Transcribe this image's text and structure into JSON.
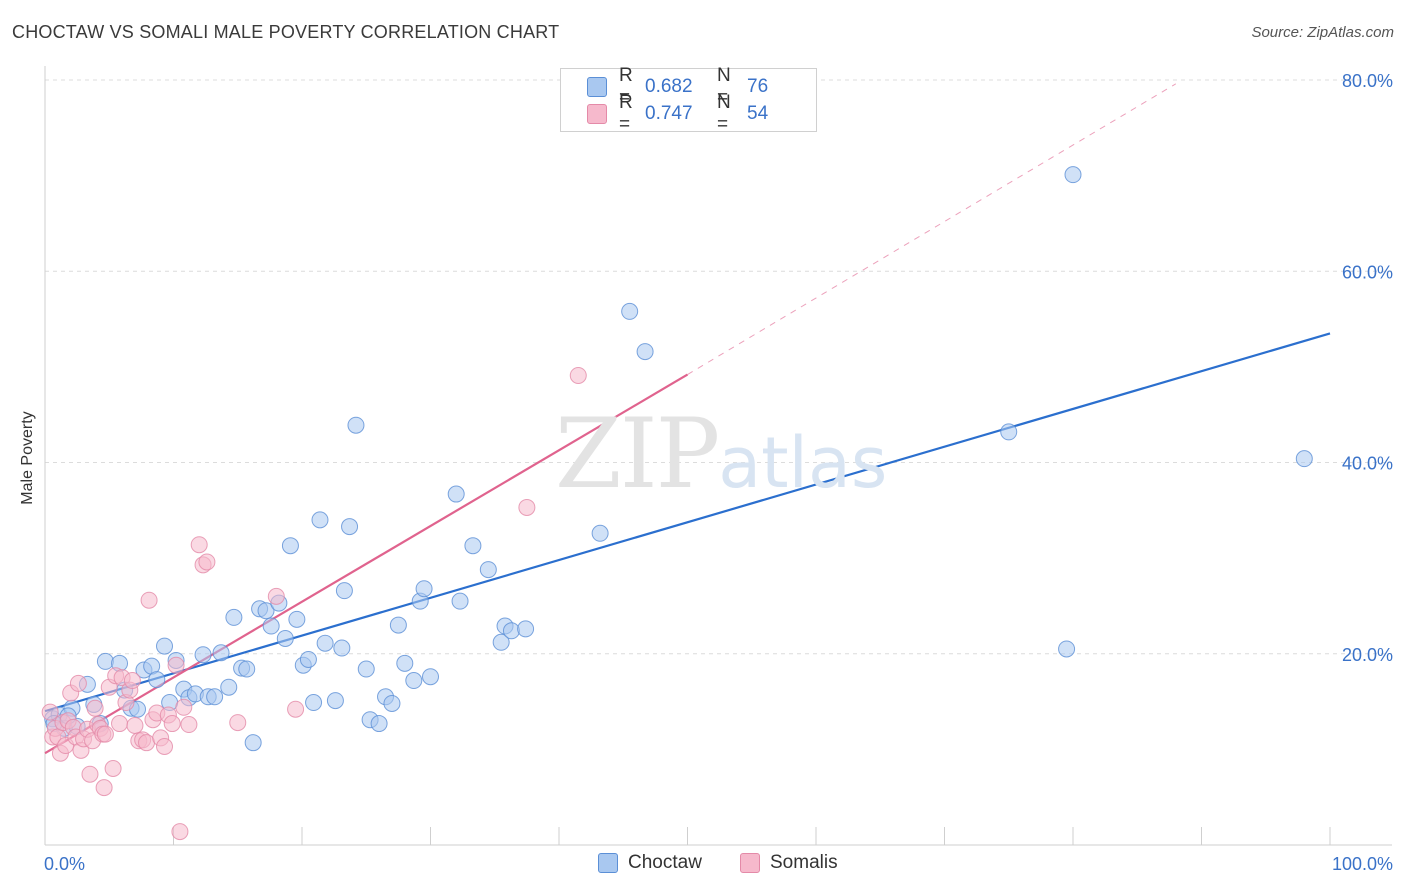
{
  "title": "CHOCTAW VS SOMALI MALE POVERTY CORRELATION CHART",
  "source": "Source: ZipAtlas.com",
  "watermark": {
    "zip": "ZIP",
    "atlas": "atlas"
  },
  "colors": {
    "choctaw_fill": "#a9c8f0",
    "choctaw_stroke": "#5b8fd6",
    "choctaw_line": "#2b6fce",
    "somali_fill": "#f6b9cc",
    "somali_stroke": "#e48aa8",
    "somali_line": "#e0638e",
    "axis_label": "#3a72c8"
  },
  "legend": [
    {
      "r_label": "R = ",
      "r_value": "0.682",
      "n_label": "N = ",
      "n_value": "76"
    },
    {
      "r_label": "R = ",
      "r_value": "0.747",
      "n_label": "N = ",
      "n_value": "54"
    }
  ],
  "bottom_legend": [
    "Choctaw",
    "Somalis"
  ],
  "chart_data": {
    "type": "scatter",
    "title": "CHOCTAW VS SOMALI MALE POVERTY CORRELATION CHART",
    "xlabel": "",
    "ylabel": "Male Poverty",
    "xlim": [
      0,
      100
    ],
    "ylim": [
      0,
      80
    ],
    "x_tick_labels": [
      "0.0%",
      "100.0%"
    ],
    "y_ticks": [
      20,
      40,
      60,
      80
    ],
    "y_tick_labels": [
      "20.0%",
      "40.0%",
      "60.0%",
      "80.0%"
    ],
    "series": [
      {
        "name": "Choctaw",
        "r": 0.682,
        "n": 76,
        "trend": {
          "x0": 0,
          "y0": 14.0,
          "x1": 100,
          "y1": 53.5
        },
        "points": [
          [
            0.6,
            13.2
          ],
          [
            1.1,
            13.6
          ],
          [
            1.5,
            12.2
          ],
          [
            2.1,
            14.3
          ],
          [
            2.5,
            12.4
          ],
          [
            3.3,
            16.8
          ],
          [
            3.8,
            14.7
          ],
          [
            4.3,
            12.7
          ],
          [
            4.7,
            19.2
          ],
          [
            5.8,
            19.0
          ],
          [
            6.2,
            16.2
          ],
          [
            6.7,
            14.3
          ],
          [
            7.2,
            14.2
          ],
          [
            7.7,
            18.3
          ],
          [
            8.3,
            18.7
          ],
          [
            8.7,
            17.3
          ],
          [
            9.3,
            20.8
          ],
          [
            9.7,
            14.9
          ],
          [
            10.2,
            19.3
          ],
          [
            10.8,
            16.3
          ],
          [
            11.2,
            15.4
          ],
          [
            11.7,
            15.8
          ],
          [
            12.3,
            19.9
          ],
          [
            12.7,
            15.5
          ],
          [
            13.2,
            15.5
          ],
          [
            13.7,
            20.1
          ],
          [
            14.3,
            16.5
          ],
          [
            14.7,
            23.8
          ],
          [
            15.3,
            18.5
          ],
          [
            15.7,
            18.4
          ],
          [
            16.2,
            10.7
          ],
          [
            16.7,
            24.7
          ],
          [
            17.2,
            24.5
          ],
          [
            17.6,
            22.9
          ],
          [
            18.2,
            25.3
          ],
          [
            18.7,
            21.6
          ],
          [
            19.1,
            31.3
          ],
          [
            19.6,
            23.6
          ],
          [
            20.1,
            18.8
          ],
          [
            20.5,
            19.4
          ],
          [
            20.9,
            14.9
          ],
          [
            21.4,
            34.0
          ],
          [
            21.8,
            21.1
          ],
          [
            22.6,
            15.1
          ],
          [
            23.1,
            20.6
          ],
          [
            23.3,
            26.6
          ],
          [
            23.7,
            33.3
          ],
          [
            24.2,
            43.9
          ],
          [
            25.0,
            18.4
          ],
          [
            25.3,
            13.1
          ],
          [
            26.0,
            12.7
          ],
          [
            26.5,
            15.5
          ],
          [
            27.0,
            14.8
          ],
          [
            27.5,
            23.0
          ],
          [
            28.0,
            19.0
          ],
          [
            28.7,
            17.2
          ],
          [
            29.2,
            25.5
          ],
          [
            29.5,
            26.8
          ],
          [
            30.0,
            17.6
          ],
          [
            32.0,
            36.7
          ],
          [
            32.3,
            25.5
          ],
          [
            33.3,
            31.3
          ],
          [
            34.5,
            28.8
          ],
          [
            35.5,
            21.2
          ],
          [
            35.8,
            22.9
          ],
          [
            36.3,
            22.4
          ],
          [
            37.4,
            22.6
          ],
          [
            43.2,
            32.6
          ],
          [
            45.5,
            55.8
          ],
          [
            46.7,
            51.6
          ],
          [
            75.0,
            43.2
          ],
          [
            80.0,
            70.1
          ],
          [
            79.5,
            20.5
          ],
          [
            98.0,
            40.4
          ],
          [
            0.7,
            12.7
          ],
          [
            1.8,
            13.5
          ]
        ]
      },
      {
        "name": "Somalis",
        "r": 0.747,
        "n": 54,
        "trend": {
          "x0": 0,
          "y0": 9.6,
          "x1": 50,
          "y1": 49.2,
          "dashed_to": {
            "x": 88,
            "y": 79.6
          }
        },
        "points": [
          [
            0.4,
            13.9
          ],
          [
            0.6,
            11.3
          ],
          [
            0.8,
            12.2
          ],
          [
            1.0,
            11.3
          ],
          [
            1.2,
            9.6
          ],
          [
            1.4,
            12.8
          ],
          [
            1.6,
            10.4
          ],
          [
            1.8,
            13.0
          ],
          [
            2.0,
            15.9
          ],
          [
            2.2,
            12.3
          ],
          [
            2.4,
            11.3
          ],
          [
            2.6,
            16.9
          ],
          [
            2.8,
            9.9
          ],
          [
            3.0,
            11.1
          ],
          [
            3.3,
            12.1
          ],
          [
            3.5,
            7.4
          ],
          [
            3.7,
            10.9
          ],
          [
            3.9,
            14.3
          ],
          [
            4.1,
            12.6
          ],
          [
            4.3,
            12.2
          ],
          [
            4.5,
            11.6
          ],
          [
            4.7,
            11.6
          ],
          [
            5.0,
            16.5
          ],
          [
            5.3,
            8.0
          ],
          [
            5.5,
            17.7
          ],
          [
            5.8,
            12.7
          ],
          [
            6.0,
            17.5
          ],
          [
            6.3,
            14.9
          ],
          [
            6.6,
            16.2
          ],
          [
            6.8,
            17.2
          ],
          [
            7.0,
            12.5
          ],
          [
            7.3,
            10.9
          ],
          [
            7.6,
            11.0
          ],
          [
            7.9,
            10.7
          ],
          [
            8.1,
            25.6
          ],
          [
            8.4,
            13.1
          ],
          [
            8.7,
            13.8
          ],
          [
            9.0,
            11.2
          ],
          [
            9.3,
            10.3
          ],
          [
            9.6,
            13.6
          ],
          [
            9.9,
            12.7
          ],
          [
            10.2,
            18.8
          ],
          [
            10.5,
            1.4
          ],
          [
            10.8,
            14.4
          ],
          [
            11.2,
            12.6
          ],
          [
            12.0,
            31.4
          ],
          [
            12.3,
            29.3
          ],
          [
            12.6,
            29.6
          ],
          [
            15.0,
            12.8
          ],
          [
            18.0,
            26.0
          ],
          [
            19.5,
            14.2
          ],
          [
            37.5,
            35.3
          ],
          [
            41.5,
            49.1
          ],
          [
            4.6,
            6.0
          ]
        ]
      }
    ]
  }
}
